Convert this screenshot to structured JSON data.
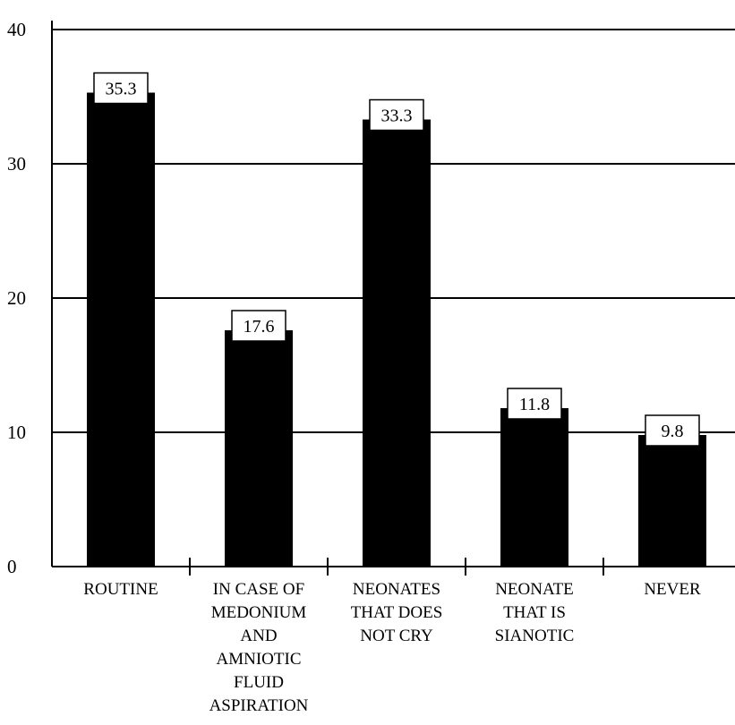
{
  "chart_data": {
    "type": "bar",
    "title": "",
    "xlabel": "",
    "ylabel": "",
    "ylim": [
      0,
      40
    ],
    "yticks": [
      0,
      10,
      20,
      30,
      40
    ],
    "grid": true,
    "categories": [
      [
        "ROUTINE"
      ],
      [
        "IN CASE OF",
        "MEDONIUM",
        "AND",
        "AMNIOTIC",
        "FLUID",
        "ASPIRATION"
      ],
      [
        "NEONATES",
        "THAT DOES",
        "NOT CRY"
      ],
      [
        "NEONATE",
        "THAT IS",
        "SIANOTIC"
      ],
      [
        "NEVER"
      ]
    ],
    "values": [
      35.3,
      17.6,
      33.3,
      11.8,
      9.8
    ],
    "value_labels": [
      "35.3",
      "17.6",
      "33.3",
      "11.8",
      "9.8"
    ],
    "bar_color": "#000000"
  }
}
